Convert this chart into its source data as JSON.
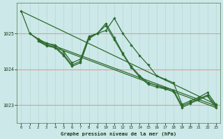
{
  "title": "Graphe pression niveau de la mer (hPa)",
  "bg_color": "#cce8e8",
  "line_color": "#2d6a2d",
  "grid_color_h": "#e89898",
  "grid_color_v": "#b8d8d8",
  "xlim": [
    -0.5,
    23.5
  ],
  "ylim": [
    1022.5,
    1025.85
  ],
  "xticks": [
    0,
    1,
    2,
    3,
    4,
    5,
    6,
    7,
    8,
    9,
    10,
    11,
    12,
    13,
    14,
    15,
    16,
    17,
    18,
    19,
    20,
    21,
    22,
    23
  ],
  "ytick_vals": [
    1023,
    1024,
    1025
  ],
  "series_with_markers": [
    {
      "x": [
        0,
        1,
        2,
        3,
        4,
        5,
        6,
        7,
        8,
        9,
        10,
        11,
        12,
        13,
        14,
        15,
        16,
        17,
        18,
        19,
        20,
        21,
        22,
        23
      ],
      "y": [
        1025.62,
        1025.0,
        1024.85,
        1024.72,
        1024.68,
        1024.5,
        1024.18,
        1024.28,
        1024.92,
        1025.0,
        1025.08,
        1025.42,
        1025.0,
        1024.68,
        1024.38,
        1024.12,
        1023.82,
        1023.72,
        1023.62,
        1023.02,
        1023.12,
        1023.22,
        1023.35,
        1023.02
      ]
    },
    {
      "x": [
        1,
        2,
        3,
        4,
        5,
        6,
        7,
        8,
        9,
        10,
        11,
        12,
        13,
        14,
        15,
        16,
        17,
        18,
        19,
        20,
        21,
        22,
        23
      ],
      "y": [
        1025.0,
        1024.82,
        1024.68,
        1024.62,
        1024.42,
        1024.12,
        1024.22,
        1024.88,
        1025.0,
        1025.28,
        1024.88,
        1024.45,
        1024.08,
        1023.82,
        1023.62,
        1023.55,
        1023.48,
        1023.42,
        1022.98,
        1023.08,
        1023.18,
        1023.28,
        1022.98
      ]
    },
    {
      "x": [
        2,
        3,
        4,
        5,
        6,
        7,
        8,
        9,
        10,
        11,
        12,
        13,
        14,
        15,
        16,
        17,
        18,
        19,
        20,
        21,
        22,
        23
      ],
      "y": [
        1024.78,
        1024.65,
        1024.6,
        1024.38,
        1024.08,
        1024.18,
        1024.85,
        1025.0,
        1025.22,
        1024.82,
        1024.42,
        1024.05,
        1023.78,
        1023.58,
        1023.5,
        1023.45,
        1023.38,
        1022.93,
        1023.05,
        1023.15,
        1023.25,
        1022.93
      ]
    }
  ],
  "series_diagonal": [
    {
      "x": [
        0,
        23
      ],
      "y": [
        1025.62,
        1023.02
      ]
    },
    {
      "x": [
        2,
        23
      ],
      "y": [
        1024.82,
        1022.98
      ]
    },
    {
      "x": [
        2,
        23
      ],
      "y": [
        1024.78,
        1022.93
      ]
    }
  ]
}
